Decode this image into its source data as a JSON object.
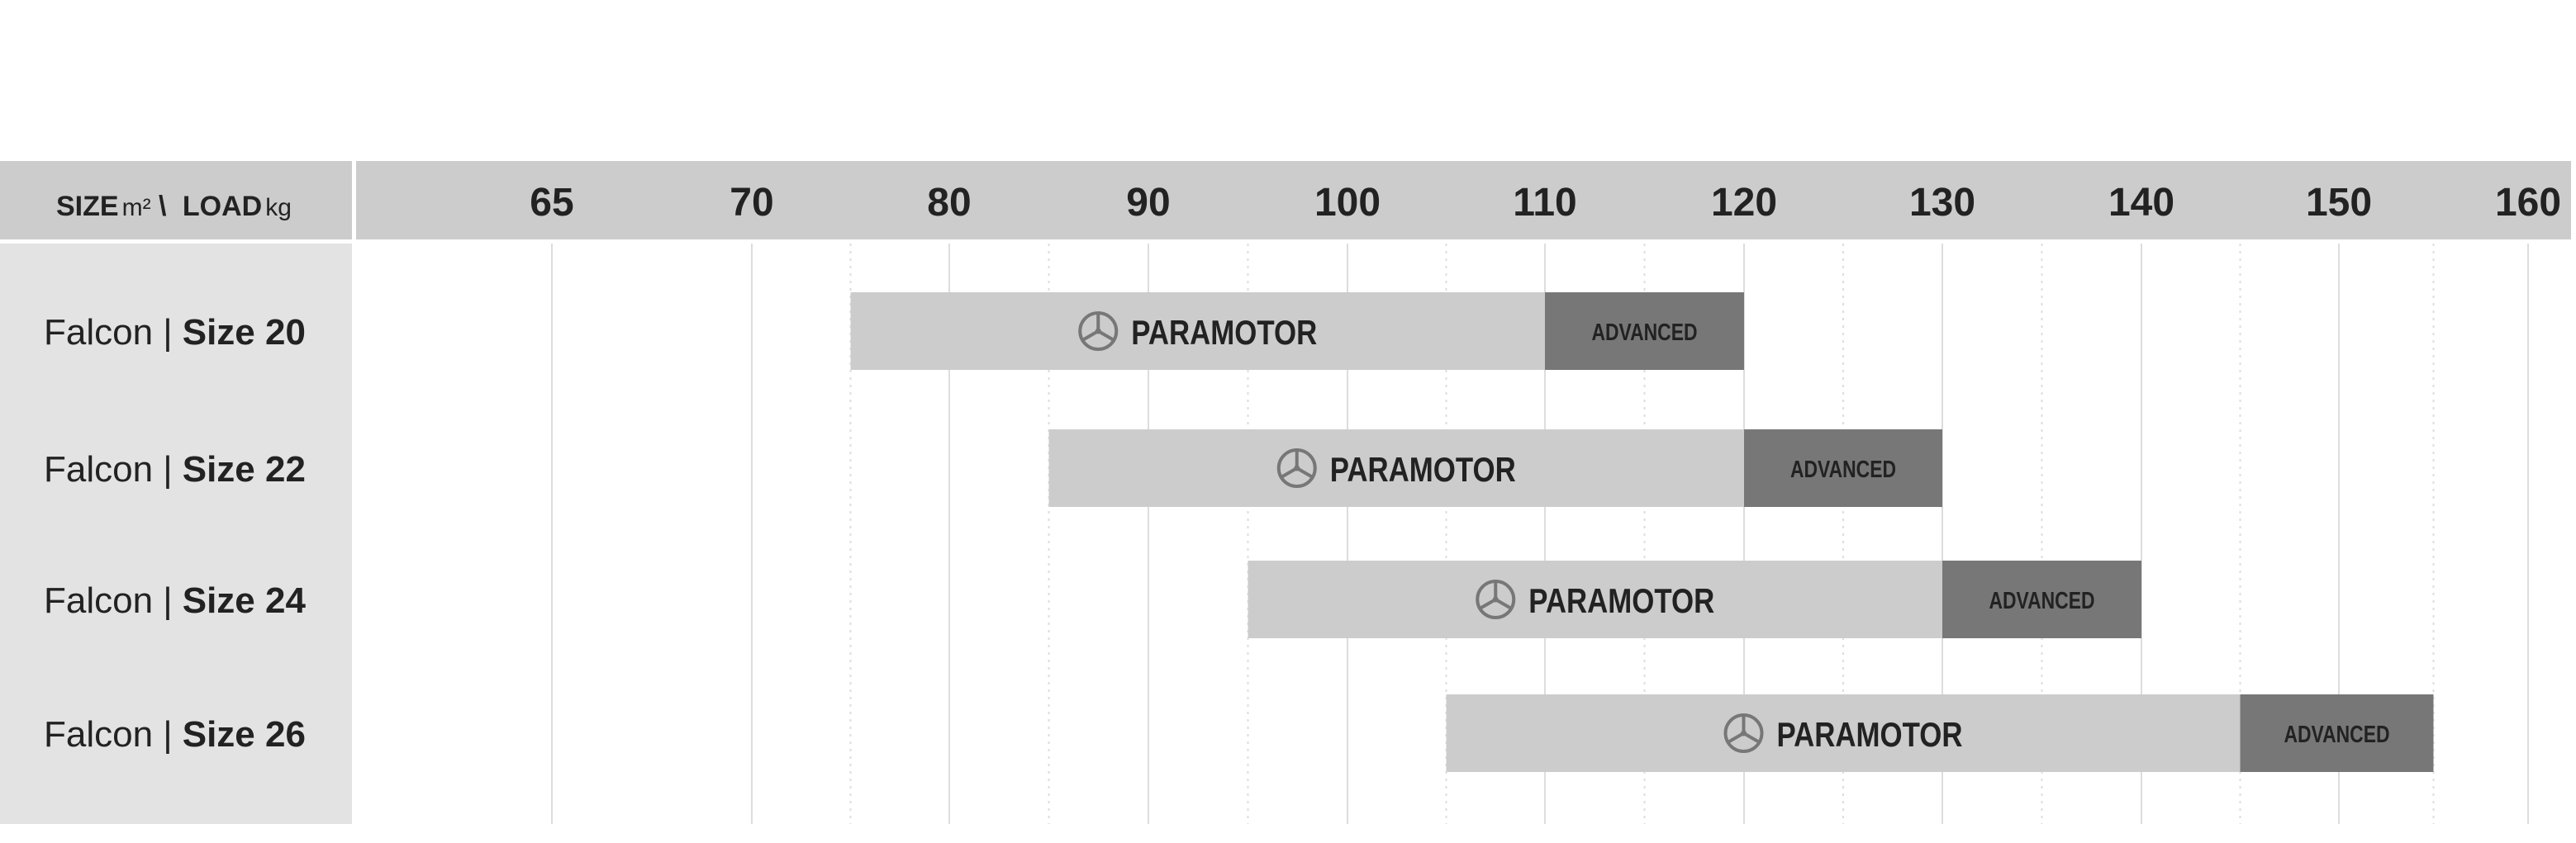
{
  "chart_data": {
    "type": "range_bar",
    "header": {
      "size_label": "SIZE",
      "size_unit": "m²",
      "separator": "\\",
      "load_label": "LOAD",
      "load_unit": "kg"
    },
    "ticks": [
      65,
      70,
      80,
      90,
      100,
      110,
      120,
      130,
      140,
      150,
      160
    ],
    "rows": [
      {
        "name": "Falcon |",
        "size": "Size 20",
        "paramotor_range": [
          75,
          110
        ],
        "advanced_range": [
          110,
          120
        ]
      },
      {
        "name": "Falcon |",
        "size": "Size 22",
        "paramotor_range": [
          85,
          120
        ],
        "advanced_range": [
          120,
          130
        ]
      },
      {
        "name": "Falcon |",
        "size": "Size 24",
        "paramotor_range": [
          95,
          130
        ],
        "advanced_range": [
          130,
          140
        ]
      },
      {
        "name": "Falcon |",
        "size": "Size 26",
        "paramotor_range": [
          105,
          145
        ],
        "advanced_range": [
          145,
          155
        ]
      }
    ],
    "segment_labels": {
      "paramotor": "PARAMOTOR",
      "advanced": "ADVANCED"
    },
    "icons": {
      "paramotor": "propeller-icon"
    },
    "colors": {
      "header_bg": "#cccccc",
      "label_bg": "#e3e3e3",
      "paramotor": "#cccccc",
      "advanced": "#777777",
      "text": "#222222",
      "grid": "#dddddd",
      "icon": "#777777"
    }
  }
}
